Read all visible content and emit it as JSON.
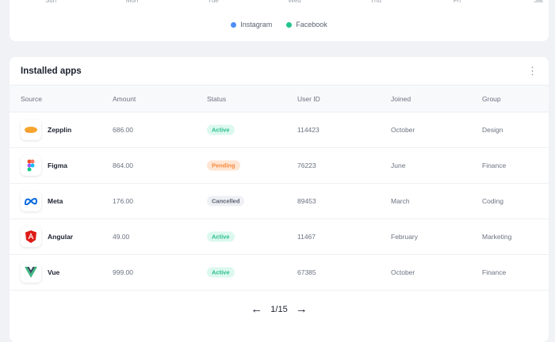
{
  "chart": {
    "x_ticks": [
      "Sun",
      "Mon",
      "Tue",
      "Wed",
      "Thu",
      "Fri",
      "Sat"
    ],
    "legend": [
      {
        "label": "Instagram",
        "color": "#4f8ef7"
      },
      {
        "label": "Facebook",
        "color": "#21c48d"
      }
    ]
  },
  "apps": {
    "title": "Installed apps",
    "menu_icon": "more-vertical-icon",
    "columns": [
      "Source",
      "Amount",
      "Status",
      "User ID",
      "Joined",
      "Group"
    ],
    "rows": [
      {
        "source": "Zepplin",
        "amount": "686.00",
        "status": "Active",
        "user_id": "114423",
        "joined": "October",
        "group": "Design"
      },
      {
        "source": "Figma",
        "amount": "864.00",
        "status": "Pending",
        "user_id": "76223",
        "joined": "June",
        "group": "Finance"
      },
      {
        "source": "Meta",
        "amount": "176.00",
        "status": "Cancelled",
        "user_id": "89453",
        "joined": "March",
        "group": "Coding"
      },
      {
        "source": "Angular",
        "amount": "49.00",
        "status": "Active",
        "user_id": "11467",
        "joined": "February",
        "group": "Marketing"
      },
      {
        "source": "Vue",
        "amount": "999.00",
        "status": "Active",
        "user_id": "67385",
        "joined": "October",
        "group": "Finance"
      }
    ],
    "pagination": {
      "label": "1/15"
    }
  }
}
